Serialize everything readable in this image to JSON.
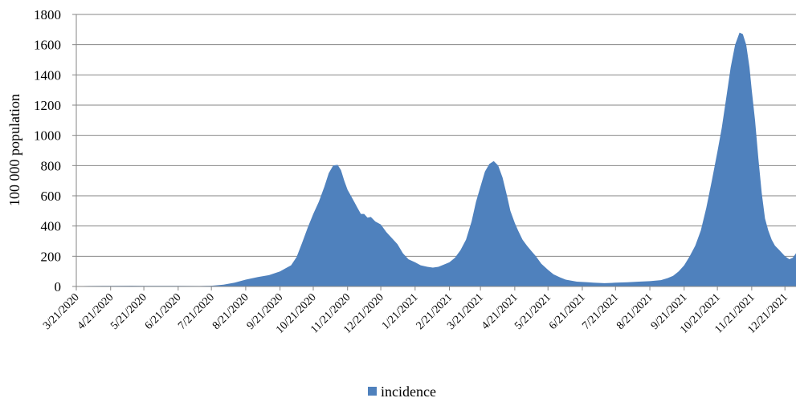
{
  "chart_data": {
    "type": "area",
    "title": "",
    "xlabel": "",
    "ylabel": "100 000 population",
    "ylim": [
      0,
      1800
    ],
    "xlim": [
      "3/21/2020",
      "12/31/2021"
    ],
    "y_ticks": [
      0,
      200,
      400,
      600,
      800,
      1000,
      1200,
      1400,
      1600,
      1800
    ],
    "x_ticks": [
      "3/21/2020",
      "4/21/2020",
      "5/21/2020",
      "6/21/2020",
      "7/21/2020",
      "8/21/2020",
      "9/21/2020",
      "10/21/2020",
      "11/21/2020",
      "12/21/2020",
      "1/21/2021",
      "2/21/2021",
      "3/21/2021",
      "4/21/2021",
      "5/21/2021",
      "6/21/2021",
      "7/21/2021",
      "8/21/2021",
      "9/21/2021",
      "10/21/2021",
      "11/21/2021",
      "12/21/2021"
    ],
    "grid": true,
    "legend": "bottom-center",
    "colors": {
      "incidence": "#4f81bd"
    },
    "series": [
      {
        "name": "incidence",
        "x": [
          "3/21/2020",
          "4/1/2020",
          "4/21/2020",
          "5/10/2020",
          "5/21/2020",
          "6/10/2020",
          "6/21/2020",
          "7/10/2020",
          "7/21/2020",
          "8/1/2020",
          "8/11/2020",
          "8/21/2020",
          "9/1/2020",
          "9/11/2020",
          "9/21/2020",
          "9/26/2020",
          "10/1/2020",
          "10/6/2020",
          "10/11/2020",
          "10/16/2020",
          "10/21/2020",
          "10/26/2020",
          "10/31/2020",
          "11/4/2020",
          "11/8/2020",
          "11/12/2020",
          "11/15/2020",
          "11/18/2020",
          "11/21/2020",
          "11/24/2020",
          "11/27/2020",
          "11/30/2020",
          "12/3/2020",
          "12/6/2020",
          "12/9/2020",
          "12/12/2020",
          "12/16/2020",
          "12/21/2020",
          "12/26/2020",
          "12/31/2020",
          "1/5/2021",
          "1/10/2021",
          "1/15/2021",
          "1/21/2021",
          "1/26/2021",
          "2/1/2021",
          "2/6/2021",
          "2/11/2021",
          "2/16/2021",
          "2/21/2021",
          "2/26/2021",
          "3/3/2021",
          "3/8/2021",
          "3/13/2021",
          "3/17/2021",
          "3/21/2021",
          "3/25/2021",
          "3/29/2021",
          "4/2/2021",
          "4/6/2021",
          "4/10/2021",
          "4/14/2021",
          "4/17/2021",
          "4/21/2021",
          "4/24/2021",
          "4/28/2021",
          "5/2/2021",
          "5/6/2021",
          "5/10/2021",
          "5/15/2021",
          "5/21/2021",
          "5/26/2021",
          "6/1/2021",
          "6/6/2021",
          "6/11/2021",
          "6/16/2021",
          "6/21/2021",
          "6/26/2021",
          "7/1/2021",
          "7/11/2021",
          "7/21/2021",
          "8/1/2021",
          "8/11/2021",
          "8/21/2021",
          "8/31/2021",
          "9/6/2021",
          "9/11/2021",
          "9/16/2021",
          "9/21/2021",
          "9/26/2021",
          "10/1/2021",
          "10/6/2021",
          "10/11/2021",
          "10/16/2021",
          "10/21/2021",
          "10/25/2021",
          "10/29/2021",
          "11/2/2021",
          "11/6/2021",
          "11/10/2021",
          "11/13/2021",
          "11/16/2021",
          "11/19/2021",
          "11/21/2021",
          "11/24/2021",
          "11/27/2021",
          "11/30/2021",
          "12/3/2021",
          "12/6/2021",
          "12/9/2021",
          "12/12/2021",
          "12/16/2021",
          "12/21/2021",
          "12/25/2021",
          "12/28/2021",
          "12/31/2021"
        ],
        "values": [
          2,
          3,
          4,
          5,
          4,
          4,
          4,
          3,
          5,
          12,
          25,
          45,
          62,
          75,
          100,
          120,
          140,
          195,
          290,
          390,
          480,
          560,
          660,
          750,
          800,
          805,
          770,
          700,
          640,
          600,
          560,
          520,
          480,
          480,
          455,
          460,
          430,
          410,
          360,
          320,
          280,
          220,
          180,
          160,
          140,
          130,
          125,
          130,
          145,
          160,
          190,
          240,
          310,
          430,
          560,
          660,
          760,
          810,
          830,
          800,
          720,
          600,
          500,
          420,
          370,
          310,
          270,
          235,
          200,
          150,
          110,
          80,
          60,
          45,
          38,
          32,
          30,
          28,
          25,
          22,
          25,
          28,
          32,
          35,
          42,
          55,
          70,
          100,
          140,
          200,
          270,
          370,
          520,
          700,
          890,
          1050,
          1250,
          1450,
          1600,
          1680,
          1670,
          1600,
          1450,
          1300,
          1100,
          850,
          620,
          450,
          370,
          310,
          270,
          240,
          200,
          180,
          190,
          220
        ]
      }
    ]
  }
}
